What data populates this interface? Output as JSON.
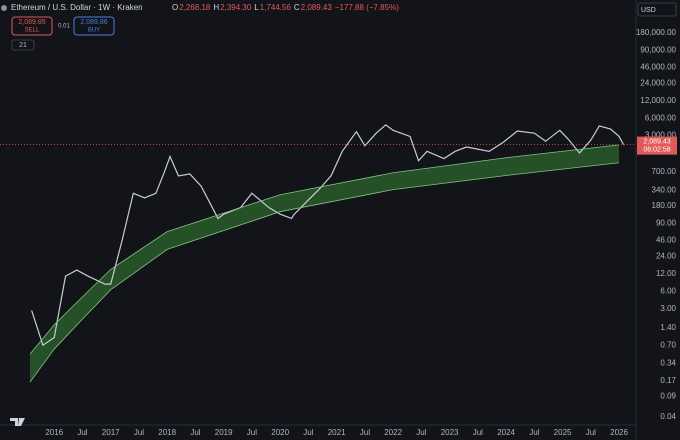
{
  "header": {
    "symbol": "Ethereum / U.S. Dollar · 1W · Kraken",
    "ohlc": [
      {
        "key": "O",
        "value": "2,268.18"
      },
      {
        "key": "H",
        "value": "2,394.30"
      },
      {
        "key": "L",
        "value": "1,744.56"
      },
      {
        "key": "C",
        "value": "2,089.43"
      }
    ],
    "change": "−177.88 (−7.85%)",
    "sell_price": "2,089.85",
    "sell": "SELL",
    "spread": "0.01",
    "buy_price": "2,089.86",
    "buy": "BUY",
    "indicators": "21",
    "currency": "USD",
    "countdown": "06:02:58"
  },
  "chart_data": {
    "type": "line",
    "log_scale": true,
    "grid": false,
    "xlim": [
      2015.04,
      2026.3
    ],
    "ylim": [
      0.029,
      670000
    ],
    "xticks": [
      2016,
      {
        "value": 2016.5,
        "label": "Jul"
      },
      2017,
      {
        "value": 2017.5,
        "label": "Jul"
      },
      2018,
      {
        "value": 2018.5,
        "label": "Jul"
      },
      2019,
      {
        "value": 2019.5,
        "label": "Jul"
      },
      2020,
      {
        "value": 2020.5,
        "label": "Jul"
      },
      2021,
      {
        "value": 2021.5,
        "label": "Jul"
      },
      2022,
      {
        "value": 2022.5,
        "label": "Jul"
      },
      2023,
      {
        "value": 2023.5,
        "label": "Jul"
      },
      2024,
      {
        "value": 2024.5,
        "label": "Jul"
      },
      2025,
      {
        "value": 2025.5,
        "label": "Jul"
      },
      2026
    ],
    "yticks": [
      {
        "value": 180000,
        "label": "180,000.00"
      },
      {
        "value": 90000,
        "label": "90,000.00"
      },
      {
        "value": 46000,
        "label": "46,000.00"
      },
      {
        "value": 24000,
        "label": "24,000.00"
      },
      {
        "value": 12000,
        "label": "12,000.00"
      },
      {
        "value": 6000,
        "label": "6,000.00"
      },
      {
        "value": 3000,
        "label": "3,000.00"
      },
      {
        "value": 700,
        "label": "700.00"
      },
      {
        "value": 340,
        "label": "340.00"
      },
      {
        "value": 180,
        "label": "180.00"
      },
      {
        "value": 90,
        "label": "90.00"
      },
      {
        "value": 46,
        "label": "46.00"
      },
      {
        "value": 24,
        "label": "24.00"
      },
      {
        "value": 12,
        "label": "12.00"
      },
      {
        "value": 6,
        "label": "6.00"
      },
      {
        "value": 3,
        "label": "3.00"
      },
      {
        "value": 1.4,
        "label": "1.40"
      },
      {
        "value": 0.7,
        "label": "0.70"
      },
      {
        "value": 0.34,
        "label": "0.34"
      },
      {
        "value": 0.17,
        "label": "0.17"
      },
      {
        "value": 0.09,
        "label": "0.09"
      },
      {
        "value": 0.04,
        "label": "0.04"
      }
    ],
    "last_price": {
      "value": 2089.43,
      "label": "2,089.43"
    },
    "series": [
      {
        "color": "#c9ccd3",
        "x": [
          2015.6,
          2015.8,
          2016.0,
          2016.2,
          2016.4,
          2016.6,
          2016.9,
          2017.0,
          2017.2,
          2017.4,
          2017.6,
          2017.8,
          2017.95,
          2018.05,
          2018.2,
          2018.4,
          2018.6,
          2018.9,
          2019.0,
          2019.3,
          2019.5,
          2019.8,
          2020.0,
          2020.2,
          2020.25,
          2020.5,
          2020.7,
          2020.9,
          2021.1,
          2021.35,
          2021.5,
          2021.7,
          2021.87,
          2022.0,
          2022.3,
          2022.45,
          2022.6,
          2022.9,
          2023.1,
          2023.3,
          2023.7,
          2023.95,
          2024.2,
          2024.5,
          2024.7,
          2024.95,
          2025.1,
          2025.3,
          2025.5,
          2025.65,
          2025.85,
          2026.0,
          2026.08
        ],
        "values": [
          2.8,
          0.7,
          0.95,
          11,
          14,
          11,
          8,
          8,
          45,
          300,
          250,
          300,
          700,
          1300,
          600,
          650,
          400,
          110,
          130,
          170,
          300,
          170,
          130,
          110,
          130,
          230,
          360,
          600,
          1600,
          3500,
          2000,
          3300,
          4600,
          3700,
          2900,
          1100,
          1600,
          1200,
          1600,
          1900,
          1600,
          2300,
          3600,
          3300,
          2400,
          3700,
          2600,
          1500,
          2500,
          4400,
          3900,
          2900,
          2089.43
        ]
      },
      {
        "color": "#7ec77e",
        "x": [
          2015.57,
          2016.0,
          2016.46,
          2017.0,
          2018.0,
          2020.0,
          2022.0,
          2024.0,
          2026.0
        ],
        "values": [
          0.49,
          1.58,
          4.4,
          14.4,
          65,
          283,
          680,
          1240,
          2070
        ]
      },
      {
        "color": "#7ec77e",
        "x": [
          2015.57,
          2016.0,
          2016.46,
          2017.0,
          2018.0,
          2020.0,
          2022.0,
          2024.0,
          2026.0
        ],
        "values": [
          0.16,
          0.6,
          1.8,
          6.4,
          32,
          144,
          347,
          610,
          1015
        ]
      }
    ]
  }
}
